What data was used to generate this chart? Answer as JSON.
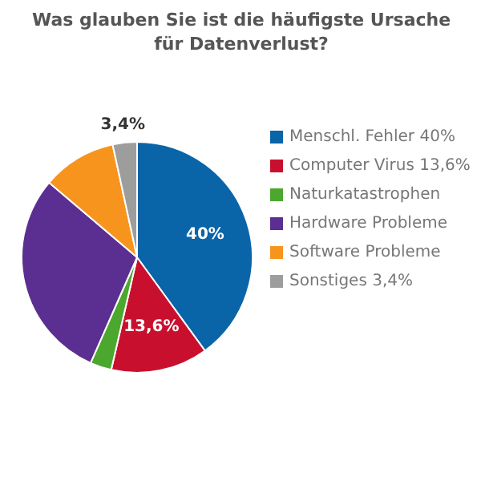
{
  "chart_data": {
    "type": "pie",
    "title": "Was glauben Sie ist die häufigste Ursache für Datenverlust?",
    "categories": [
      "Menschl. Fehler 40%",
      "Computer Virus 13,6%",
      "Naturkatastrophen",
      "Hardware Probleme",
      "Software Probleme",
      "Sonstiges 3,4%"
    ],
    "values": [
      40,
      13.6,
      3,
      29.6,
      10.4,
      3.4
    ],
    "colors": [
      "#0a64a8",
      "#c8102e",
      "#4ca72f",
      "#5b2e91",
      "#f7941d",
      "#9d9d9d"
    ],
    "value_labels": [
      "40%",
      "13,6%",
      null,
      null,
      null,
      "3,4%"
    ],
    "legend": "right"
  }
}
